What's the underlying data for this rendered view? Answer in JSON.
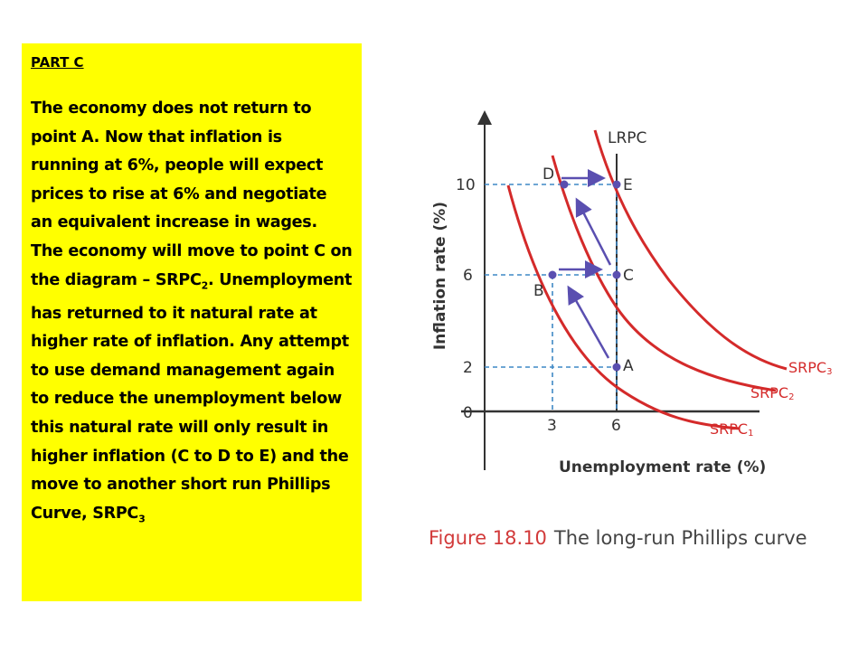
{
  "panel": {
    "heading": "PART C",
    "paragraph_main": "The economy does not return to point A.  Now that inflation is running at 6%, people will expect prices to rise at 6% and negotiate an equivalent increase in wages.   The economy will move to point C on the diagram – SRPC",
    "paragraph_main_sub": "2",
    "paragraph_main_end": ".  Unemployment has returned to it natural rate at higher rate of inflation.   Any attempt to use demand management again to reduce the unemployment below this natural rate will only result in higher inflation (C to D to E) and the move to another short run Phillips Curve, SRPC",
    "paragraph_end_sub": "3"
  },
  "figure": {
    "caption_number": "Figure 18.10",
    "caption_title": "The long-run Phillips curve",
    "y_axis_label": "Inflation rate (%)",
    "x_axis_label": "Unemployment rate (%)",
    "origin_label": "0",
    "y_ticks": [
      "10",
      "6",
      "2"
    ],
    "x_ticks": [
      "3",
      "6"
    ],
    "lrpc_label": "LRPC",
    "curve_labels": {
      "srpc1": "SRPC",
      "srpc1_sub": "1",
      "srpc2": "SRPC",
      "srpc2_sub": "2",
      "srpc3": "SRPC",
      "srpc3_sub": "3"
    },
    "points": {
      "A": "A",
      "B": "B",
      "C": "C",
      "D": "D",
      "E": "E"
    },
    "colors": {
      "curve": "#d42a2a",
      "dash": "#3f88c5",
      "arrow": "#5a4fb0",
      "caption_number": "#d23a3a",
      "axis": "#333333"
    }
  }
}
